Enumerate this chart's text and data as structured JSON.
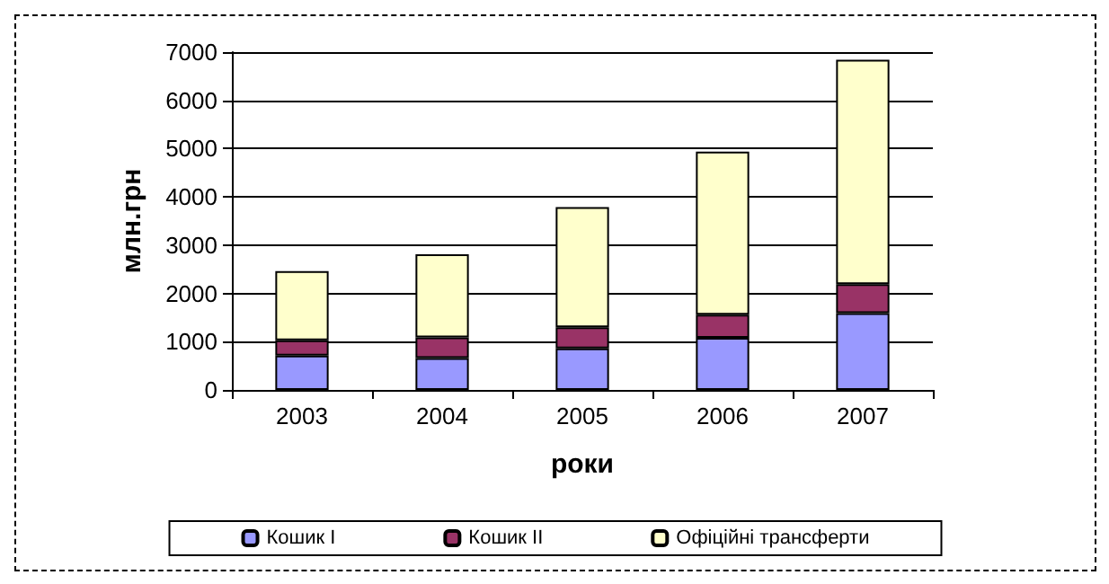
{
  "chart_data": {
    "type": "bar",
    "stacked": true,
    "categories": [
      "2003",
      "2004",
      "2005",
      "2006",
      "2007"
    ],
    "series": [
      {
        "name": "Кошик I",
        "color": "#9999ff",
        "values": [
          710,
          660,
          860,
          1080,
          1590
        ]
      },
      {
        "name": "Кошик II",
        "color": "#993366",
        "values": [
          320,
          430,
          440,
          480,
          600
        ]
      },
      {
        "name": "Офіційні трансферти",
        "color": "#ffffcc",
        "values": [
          1430,
          1720,
          2490,
          3380,
          4650
        ]
      }
    ],
    "xlabel": "роки",
    "ylabel": "млн.грн",
    "ylim": [
      0,
      7000
    ],
    "yticks": [
      0,
      1000,
      2000,
      3000,
      4000,
      5000,
      6000,
      7000
    ],
    "grid": "y",
    "legend": "bottom"
  }
}
